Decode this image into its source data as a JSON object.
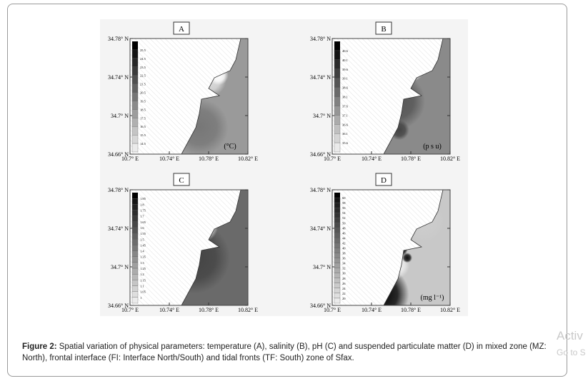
{
  "figure": {
    "panels": [
      {
        "label": "A",
        "unit": "(°C)",
        "lat_ticks": [
          "34.78° N",
          "34.74° N",
          "34.7° N",
          "34.66° N"
        ],
        "lon_ticks": [
          "10.7° E",
          "10.74° E",
          "10.78° E",
          "10.82° E"
        ],
        "colorbar": [
          "25.5",
          "24.5",
          "23.5",
          "22.5",
          "21.5",
          "20.5",
          "19.5",
          "18.5",
          "17.5",
          "16.5",
          "15.5",
          "14.5"
        ]
      },
      {
        "label": "B",
        "unit": "(p s u)",
        "lat_ticks": [
          "34.78° N",
          "34.74° N",
          "34.7° N",
          "34.66° N"
        ],
        "lon_ticks": [
          "10.7° E",
          "10.74° E",
          "10.78° E",
          "10.82° E"
        ],
        "colorbar": [
          "40.6",
          "40.1",
          "39.6",
          "39.1",
          "38.6",
          "38.1",
          "37.6",
          "37.1",
          "36.6",
          "36.1",
          "35.6"
        ]
      },
      {
        "label": "C",
        "unit": "",
        "lat_ticks": [
          "34.78° N",
          "34.74° N",
          "34.7° N",
          "34.66° N"
        ],
        "lon_ticks": [
          "10.7° E",
          "10.74° E",
          "10.78° E",
          "10.82° E"
        ],
        "colorbar": [
          "1.85",
          "1.8",
          "1.75",
          "1.7",
          "1.65",
          "1.6",
          "1.55",
          "1.5",
          "1.45",
          "1.4",
          "1.35",
          "1.3",
          "1.25",
          "1.2",
          "1.15",
          "1.1",
          "1.05",
          "1"
        ]
      },
      {
        "label": "D",
        "unit": "(mg l⁻¹)",
        "lat_ticks": [
          "34.78° N",
          "34.74° N",
          "34.7° N",
          "34.66° N"
        ],
        "lon_ticks": [
          "10.7° E",
          "10.74° E",
          "10.78° E",
          "10.82° E"
        ],
        "colorbar": [
          "60",
          "58",
          "56",
          "54",
          "52",
          "50",
          "48",
          "46",
          "44",
          "42",
          "40",
          "38",
          "36",
          "34",
          "32",
          "30",
          "28",
          "26",
          "24",
          "22",
          "20"
        ]
      }
    ]
  },
  "caption": {
    "label": "Figure 2:",
    "text": " Spatial variation of physical parameters: temperature (A), salinity (B), pH (C) and suspended particulate matter (D) in mixed zone (MZ: North), frontal interface (FI: Interface North/South) and tidal fronts (TF: South) zone of Sfax."
  },
  "watermark": {
    "line1": "Activ",
    "line2": "Go to S"
  }
}
